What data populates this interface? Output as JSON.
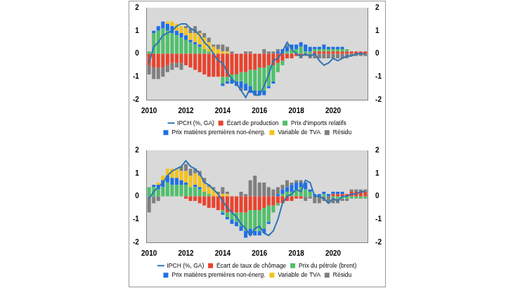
{
  "chart_data": [
    {
      "type": "bar",
      "stacked": true,
      "grid": false,
      "legend": "bottom",
      "categories": [
        "2010",
        null,
        null,
        null,
        null,
        null,
        null,
        null,
        "2012",
        null,
        null,
        null,
        null,
        null,
        null,
        null,
        "2014",
        null,
        null,
        null,
        null,
        null,
        null,
        null,
        "2016",
        null,
        null,
        null,
        null,
        null,
        null,
        null,
        "2018",
        null,
        null,
        null,
        null,
        null,
        null,
        null,
        "2020",
        null,
        null,
        null,
        null,
        null,
        null,
        null
      ],
      "ylim": [
        -2,
        2
      ],
      "yticks": [
        -2,
        -1,
        0,
        1,
        2
      ],
      "y2lim": [
        -2,
        2
      ],
      "y2ticks": [
        -2,
        -1,
        0,
        1,
        2
      ],
      "series": [
        {
          "name": "Écart de production",
          "color": "#e8432e",
          "values": [
            -0.5,
            -0.6,
            -0.6,
            -0.6,
            -0.5,
            -0.4,
            -0.4,
            -0.4,
            -0.5,
            -0.6,
            -0.7,
            -0.8,
            -0.9,
            -1.0,
            -1.0,
            -1.0,
            -1.0,
            -1.0,
            -0.9,
            -0.9,
            -0.8,
            -0.8,
            -0.7,
            -0.7,
            -0.6,
            -0.6,
            -0.5,
            -0.5,
            -0.4,
            -0.3,
            -0.2,
            -0.2,
            -0.1,
            -0.1,
            0,
            0,
            0.1,
            0.1,
            0.1,
            0.1,
            0.1,
            0.1,
            0.1,
            0.1,
            0.1,
            0.1,
            0.1,
            0.1
          ]
        },
        {
          "name": "Prix d'imports relatifs",
          "color": "#4fc06a",
          "values": [
            0.1,
            0.9,
            1.0,
            1.1,
            1.0,
            0.9,
            0.8,
            0.7,
            0.6,
            0.5,
            0.4,
            0.3,
            0.2,
            0.1,
            0,
            0,
            -0.3,
            -0.2,
            -0.2,
            -0.3,
            -0.4,
            -0.5,
            -0.7,
            -0.9,
            -1.0,
            -1.0,
            -0.9,
            -0.7,
            -0.4,
            -0.2,
            0.1,
            0.2,
            0.2,
            0.3,
            0.1,
            0.1,
            0.1,
            0.1,
            0.1,
            0.1,
            0.1,
            0.1,
            0.1,
            0.1,
            0,
            0,
            0,
            0
          ]
        },
        {
          "name": "Prix matières premières non-énerg.",
          "color": "#1f6fe5",
          "values": [
            0,
            0.1,
            0.2,
            0.3,
            0.3,
            0.3,
            0.2,
            0.2,
            0.2,
            0.1,
            0.1,
            0.1,
            0,
            0,
            0,
            0,
            -0.1,
            -0.1,
            -0.2,
            -0.2,
            -0.3,
            -0.3,
            -0.3,
            -0.2,
            -0.2,
            -0.2,
            -0.1,
            -0.1,
            0.1,
            0.2,
            0.2,
            0.2,
            0.2,
            0.2,
            0.3,
            0.2,
            0.1,
            0.1,
            0.2,
            0.1,
            0.1,
            0.1,
            0.1,
            0,
            0,
            0,
            0,
            0
          ]
        },
        {
          "name": "Variable de TVA",
          "color": "#f4c21b",
          "values": [
            0,
            0,
            0,
            0,
            0.1,
            0.2,
            0.3,
            0.3,
            0.3,
            0.3,
            0.4,
            0.5,
            0.5,
            0.4,
            0.3,
            0.2,
            0.1,
            0.1,
            0,
            0,
            0,
            0,
            0,
            0,
            0,
            0,
            0,
            0,
            0,
            0,
            0,
            0,
            0,
            0,
            0,
            0,
            0,
            0,
            0,
            0,
            0,
            0,
            0,
            0,
            0,
            0,
            0,
            0
          ]
        },
        {
          "name": "Résidu",
          "color": "#7f7f7f",
          "values": [
            -0.4,
            -0.5,
            -0.5,
            -0.4,
            -0.3,
            -0.3,
            -0.2,
            -0.3,
            0.1,
            0.2,
            0.3,
            0.1,
            0.2,
            0.2,
            0.1,
            0.2,
            0.3,
            0.2,
            0.1,
            0,
            -0.1,
            0.1,
            0.1,
            0,
            0,
            0.2,
            0.1,
            0.1,
            0.1,
            0,
            0.1,
            0,
            0,
            -0.1,
            -0.1,
            -0.2,
            -0.2,
            -0.2,
            -0.2,
            -0.2,
            -0.2,
            -0.2,
            -0.2,
            -0.2,
            -0.1,
            -0.1,
            -0.1,
            -0.1
          ]
        },
        {
          "name": "IPCH (%, GA)",
          "color": "#2e74b5",
          "type": "line",
          "values": [
            -0.4,
            0.3,
            0.5,
            0.8,
            0.9,
            1.0,
            1.2,
            1.3,
            1.3,
            1.1,
            1.0,
            0.8,
            0.5,
            0.3,
            0.0,
            -0.3,
            -0.4,
            -0.8,
            -1.1,
            -1.3,
            -1.6,
            -1.9,
            -1.5,
            -1.8,
            -1.8,
            -1.4,
            -0.9,
            -0.3,
            -0.2,
            0.1,
            0.5,
            0.2,
            0.0,
            -0.1,
            0.0,
            -0.1,
            0.0,
            -0.3,
            -0.5,
            -0.4,
            -0.2,
            -0.3,
            -0.2,
            -0.1,
            -0.1,
            0,
            0,
            0
          ]
        }
      ]
    },
    {
      "type": "bar",
      "stacked": true,
      "grid": false,
      "legend": "bottom",
      "categories": [
        "2010",
        null,
        null,
        null,
        null,
        null,
        null,
        null,
        "2012",
        null,
        null,
        null,
        null,
        null,
        null,
        null,
        "2014",
        null,
        null,
        null,
        null,
        null,
        null,
        null,
        "2016",
        null,
        null,
        null,
        null,
        null,
        null,
        null,
        "2018",
        null,
        null,
        null,
        null,
        null,
        null,
        null,
        "2020",
        null,
        null,
        null,
        null,
        null,
        null,
        null
      ],
      "ylim": [
        -2,
        2
      ],
      "yticks": [
        -2,
        -1,
        0,
        1,
        2
      ],
      "y2lim": [
        -2,
        2
      ],
      "y2ticks": [
        -2,
        -1,
        0,
        1,
        2
      ],
      "series": [
        {
          "name": "Écart de taux de chômage",
          "color": "#e8432e",
          "values": [
            0,
            0,
            0,
            0,
            0,
            0,
            0,
            0,
            -0.1,
            -0.2,
            -0.2,
            -0.3,
            -0.4,
            -0.5,
            -0.5,
            -0.6,
            -0.6,
            -0.7,
            -0.7,
            -0.7,
            -0.7,
            -0.7,
            -0.6,
            -0.6,
            -0.6,
            -0.5,
            -0.4,
            -0.4,
            -0.3,
            -0.3,
            -0.2,
            -0.2,
            -0.1,
            -0.1,
            0,
            0,
            0,
            0,
            0,
            0,
            0.1,
            0.1,
            0.1,
            0.1,
            0.2,
            0.2,
            0.2,
            0.2
          ]
        },
        {
          "name": "Prix du pétrole (brent)",
          "color": "#4fc06a",
          "values": [
            0.4,
            0.4,
            0.3,
            0.4,
            0.6,
            0.5,
            0.5,
            0.5,
            0.5,
            0.4,
            0.4,
            0.3,
            0.2,
            0.1,
            0,
            0,
            -0.1,
            -0.2,
            -0.3,
            -0.4,
            -0.6,
            -0.8,
            -0.8,
            -0.9,
            -0.9,
            -0.9,
            -0.7,
            -0.3,
            -0.1,
            0.1,
            0.2,
            0.2,
            0.3,
            0.4,
            0.3,
            0.2,
            0,
            0,
            0.1,
            0,
            -0.1,
            -0.1,
            -0.1,
            -0.1,
            -0.1,
            -0.1,
            -0.1,
            -0.1
          ]
        },
        {
          "name": "Prix matières premières non-énerg.",
          "color": "#1f6fe5",
          "values": [
            0,
            0.1,
            0.2,
            0.3,
            0.3,
            0.3,
            0.3,
            0.2,
            0.1,
            0,
            0.1,
            0.1,
            0,
            0,
            0,
            0,
            -0.1,
            -0.1,
            -0.2,
            -0.2,
            -0.2,
            -0.3,
            -0.3,
            -0.2,
            -0.2,
            -0.2,
            -0.1,
            0,
            0.1,
            0.2,
            0.2,
            0.3,
            0.3,
            0.2,
            0.3,
            0.1,
            0.1,
            0.1,
            0.1,
            0.1,
            0.1,
            0.1,
            0.1,
            0,
            0,
            0,
            0,
            0
          ]
        },
        {
          "name": "Variable de TVA",
          "color": "#f4c21b",
          "values": [
            0,
            0,
            0.1,
            0.2,
            0.3,
            0.4,
            0.4,
            0.4,
            0.5,
            0.5,
            0.5,
            0.5,
            0.4,
            0.3,
            0.3,
            0.1,
            0.1,
            0.1,
            0,
            0,
            0,
            0,
            0,
            0,
            0,
            0,
            0,
            0,
            0,
            0,
            0,
            0,
            0,
            0,
            0,
            0,
            0,
            0,
            0,
            0,
            0,
            0,
            0,
            0,
            0,
            0,
            0,
            0
          ]
        },
        {
          "name": "Résidu",
          "color": "#7f7f7f",
          "values": [
            -0.7,
            -0.3,
            -0.2,
            0,
            0,
            0,
            0,
            0.2,
            0.3,
            0.3,
            0.2,
            0.2,
            0.2,
            0.1,
            0.1,
            0.1,
            0.3,
            0.1,
            0,
            0,
            0.2,
            0.1,
            0.7,
            0.9,
            0.6,
            0.6,
            0.4,
            0.3,
            0.3,
            0.2,
            0.3,
            0.1,
            0.1,
            0.1,
            -0.2,
            -0.1,
            -0.3,
            -0.3,
            -0.2,
            -0.3,
            -0.2,
            -0.2,
            -0.1,
            -0.1,
            0.1,
            0.1,
            0.1,
            0.1
          ]
        },
        {
          "name": "IPCH (%, GA)",
          "color": "#2e74b5",
          "type": "line",
          "values": [
            -0.1,
            0.2,
            0.4,
            0.6,
            0.9,
            1.1,
            1.2,
            1.3,
            1.55,
            1.3,
            1.2,
            1.0,
            0.6,
            0.5,
            0.3,
            0.1,
            -0.2,
            -0.5,
            -0.7,
            -0.9,
            -1.2,
            -1.4,
            -1.7,
            -1.4,
            -1.3,
            -1.6,
            -1.7,
            -1.5,
            -1.0,
            -0.3,
            0.0,
            0.1,
            0.3,
            0.2,
            0.7,
            0.6,
            0.0,
            0.0,
            -0.1,
            -0.3,
            -0.1,
            -0.2,
            0.0,
            0.0,
            0.1,
            0.1,
            0.2,
            0.2
          ]
        }
      ]
    }
  ]
}
